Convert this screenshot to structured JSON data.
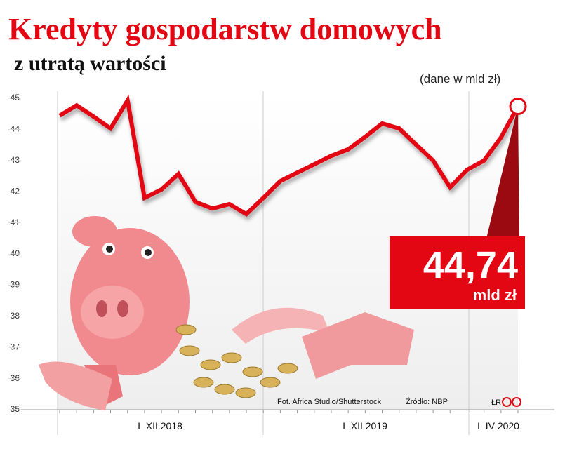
{
  "chart_data": {
    "type": "line",
    "title": "Kredyty gospodarstw domowych",
    "subtitle": "z utratą wartości",
    "unit_note": "(dane w mld zł)",
    "categories": [
      null,
      null,
      null,
      null,
      null,
      null,
      null,
      null,
      null,
      null,
      null,
      null,
      null,
      null,
      null,
      null,
      null,
      null,
      null,
      null,
      null,
      null,
      null,
      null,
      null,
      null,
      null,
      null
    ],
    "x_groups": [
      "I–XII 2018",
      "I–XII 2019",
      "I–IV 2020"
    ],
    "series": [
      {
        "name": "Kredyty z utratą wartości",
        "color": "#e30613",
        "values": [
          44.44,
          44.77,
          44.41,
          44.03,
          44.93,
          41.8,
          42.07,
          42.57,
          41.67,
          41.46,
          41.6,
          41.28,
          41.8,
          42.34,
          42.61,
          42.88,
          43.15,
          43.36,
          43.76,
          44.19,
          44.03,
          43.51,
          43.0,
          42.14,
          42.7,
          43.0,
          43.74,
          44.74
        ],
        "value_labels": [
          null,
          null,
          null,
          null,
          null,
          null,
          null,
          null,
          null,
          null,
          null,
          null,
          null,
          null,
          null,
          null,
          null,
          null,
          null,
          null,
          null,
          null,
          null,
          null,
          null,
          null,
          null,
          "44,74"
        ]
      }
    ],
    "callout_unit": "mld zł",
    "ylim": [
      35,
      45
    ],
    "yticks": [
      35,
      36,
      37,
      38,
      39,
      40,
      41,
      42,
      43,
      44,
      45
    ],
    "grid": false,
    "photo_credit": "Fot. Africa Studio/Shutterstock",
    "source": "Źródło: NBP",
    "logo": "ŁR"
  }
}
